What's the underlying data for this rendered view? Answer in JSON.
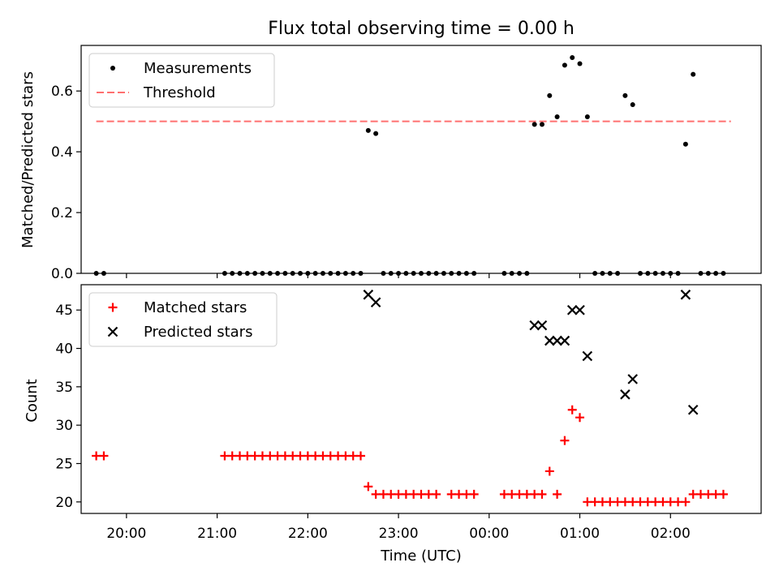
{
  "title": "Flux total observing time = 0.00 h",
  "xlabel": "Time (UTC)",
  "colors": {
    "measurement": "#000000",
    "threshold": "#ff7070",
    "matched": "#ff0000",
    "predicted": "#000000"
  },
  "chart_data": [
    {
      "type": "scatter",
      "title": "Flux total observing time = 0.00 h",
      "xlabel": "",
      "ylabel": "Matched/Predicted stars",
      "xlim": [
        "19:30",
        "03:00"
      ],
      "ylim": [
        0,
        0.75
      ],
      "yticks": [
        0.0,
        0.2,
        0.4,
        0.6
      ],
      "ytick_labels": [
        "0.0",
        "0.2",
        "0.4",
        "0.6"
      ],
      "legend": "top-left",
      "threshold": {
        "name": "Threshold",
        "value": 0.5,
        "x_range": [
          "19:40",
          "02:40"
        ]
      },
      "series": [
        {
          "name": "Measurements",
          "marker": "dot",
          "points": [
            [
              "19:40",
              0
            ],
            [
              "19:45",
              0
            ],
            [
              "21:05",
              0
            ],
            [
              "21:10",
              0
            ],
            [
              "21:15",
              0
            ],
            [
              "21:20",
              0
            ],
            [
              "21:25",
              0
            ],
            [
              "21:30",
              0
            ],
            [
              "21:35",
              0
            ],
            [
              "21:40",
              0
            ],
            [
              "21:45",
              0
            ],
            [
              "21:50",
              0
            ],
            [
              "21:55",
              0
            ],
            [
              "22:00",
              0
            ],
            [
              "22:05",
              0
            ],
            [
              "22:10",
              0
            ],
            [
              "22:15",
              0
            ],
            [
              "22:20",
              0
            ],
            [
              "22:25",
              0
            ],
            [
              "22:30",
              0
            ],
            [
              "22:35",
              0
            ],
            [
              "22:40",
              0.47
            ],
            [
              "22:45",
              0.46
            ],
            [
              "22:50",
              0
            ],
            [
              "22:55",
              0
            ],
            [
              "23:00",
              0
            ],
            [
              "23:05",
              0
            ],
            [
              "23:10",
              0
            ],
            [
              "23:15",
              0
            ],
            [
              "23:20",
              0
            ],
            [
              "23:25",
              0
            ],
            [
              "23:30",
              0
            ],
            [
              "23:35",
              0
            ],
            [
              "23:40",
              0
            ],
            [
              "23:45",
              0
            ],
            [
              "23:50",
              0
            ],
            [
              "00:10",
              0
            ],
            [
              "00:15",
              0
            ],
            [
              "00:20",
              0
            ],
            [
              "00:25",
              0
            ],
            [
              "00:30",
              0.49
            ],
            [
              "00:35",
              0.49
            ],
            [
              "00:40",
              0.585
            ],
            [
              "00:45",
              0.515
            ],
            [
              "00:50",
              0.685
            ],
            [
              "00:55",
              0.71
            ],
            [
              "01:00",
              0.69
            ],
            [
              "01:05",
              0.515
            ],
            [
              "01:10",
              0
            ],
            [
              "01:15",
              0
            ],
            [
              "01:20",
              0
            ],
            [
              "01:25",
              0
            ],
            [
              "01:30",
              0.585
            ],
            [
              "01:35",
              0.555
            ],
            [
              "01:40",
              0
            ],
            [
              "01:45",
              0
            ],
            [
              "01:50",
              0
            ],
            [
              "01:55",
              0
            ],
            [
              "02:00",
              0
            ],
            [
              "02:05",
              0
            ],
            [
              "02:10",
              0.425
            ],
            [
              "02:15",
              0.655
            ],
            [
              "02:20",
              0
            ],
            [
              "02:25",
              0
            ],
            [
              "02:30",
              0
            ],
            [
              "02:35",
              0
            ]
          ]
        }
      ]
    },
    {
      "type": "scatter",
      "title": "",
      "xlabel": "Time (UTC)",
      "ylabel": "Count",
      "xlim": [
        "19:30",
        "03:00"
      ],
      "ylim": [
        18.5,
        48.3
      ],
      "yticks": [
        20,
        25,
        30,
        35,
        40,
        45
      ],
      "ytick_labels": [
        "20",
        "25",
        "30",
        "35",
        "40",
        "45"
      ],
      "xticks": [
        "20:00",
        "21:00",
        "22:00",
        "23:00",
        "00:00",
        "01:00",
        "02:00"
      ],
      "legend": "top-left",
      "series": [
        {
          "name": "Matched stars",
          "marker": "plus",
          "points": [
            [
              "19:40",
              26
            ],
            [
              "19:45",
              26
            ],
            [
              "21:05",
              26
            ],
            [
              "21:10",
              26
            ],
            [
              "21:15",
              26
            ],
            [
              "21:20",
              26
            ],
            [
              "21:25",
              26
            ],
            [
              "21:30",
              26
            ],
            [
              "21:35",
              26
            ],
            [
              "21:40",
              26
            ],
            [
              "21:45",
              26
            ],
            [
              "21:50",
              26
            ],
            [
              "21:55",
              26
            ],
            [
              "22:00",
              26
            ],
            [
              "22:05",
              26
            ],
            [
              "22:10",
              26
            ],
            [
              "22:15",
              26
            ],
            [
              "22:20",
              26
            ],
            [
              "22:25",
              26
            ],
            [
              "22:30",
              26
            ],
            [
              "22:35",
              26
            ],
            [
              "22:40",
              22
            ],
            [
              "22:45",
              21
            ],
            [
              "22:50",
              21
            ],
            [
              "22:55",
              21
            ],
            [
              "23:00",
              21
            ],
            [
              "23:05",
              21
            ],
            [
              "23:10",
              21
            ],
            [
              "23:15",
              21
            ],
            [
              "23:20",
              21
            ],
            [
              "23:25",
              21
            ],
            [
              "23:35",
              21
            ],
            [
              "23:40",
              21
            ],
            [
              "23:45",
              21
            ],
            [
              "23:50",
              21
            ],
            [
              "00:10",
              21
            ],
            [
              "00:15",
              21
            ],
            [
              "00:20",
              21
            ],
            [
              "00:25",
              21
            ],
            [
              "00:30",
              21
            ],
            [
              "00:35",
              21
            ],
            [
              "00:40",
              24
            ],
            [
              "00:45",
              21
            ],
            [
              "00:50",
              28
            ],
            [
              "00:55",
              32
            ],
            [
              "01:00",
              31
            ],
            [
              "01:05",
              20
            ],
            [
              "01:10",
              20
            ],
            [
              "01:15",
              20
            ],
            [
              "01:20",
              20
            ],
            [
              "01:25",
              20
            ],
            [
              "01:30",
              20
            ],
            [
              "01:35",
              20
            ],
            [
              "01:40",
              20
            ],
            [
              "01:45",
              20
            ],
            [
              "01:50",
              20
            ],
            [
              "01:55",
              20
            ],
            [
              "02:00",
              20
            ],
            [
              "02:05",
              20
            ],
            [
              "02:10",
              20
            ],
            [
              "02:15",
              21
            ],
            [
              "02:20",
              21
            ],
            [
              "02:25",
              21
            ],
            [
              "02:30",
              21
            ],
            [
              "02:35",
              21
            ]
          ]
        },
        {
          "name": "Predicted stars",
          "marker": "x",
          "points": [
            [
              "22:40",
              47
            ],
            [
              "22:45",
              46
            ],
            [
              "00:30",
              43
            ],
            [
              "00:35",
              43
            ],
            [
              "00:40",
              41
            ],
            [
              "00:45",
              41
            ],
            [
              "00:50",
              41
            ],
            [
              "00:55",
              45
            ],
            [
              "01:00",
              45
            ],
            [
              "01:05",
              39
            ],
            [
              "01:30",
              34
            ],
            [
              "01:35",
              36
            ],
            [
              "02:10",
              47
            ],
            [
              "02:15",
              32
            ]
          ]
        }
      ]
    }
  ]
}
